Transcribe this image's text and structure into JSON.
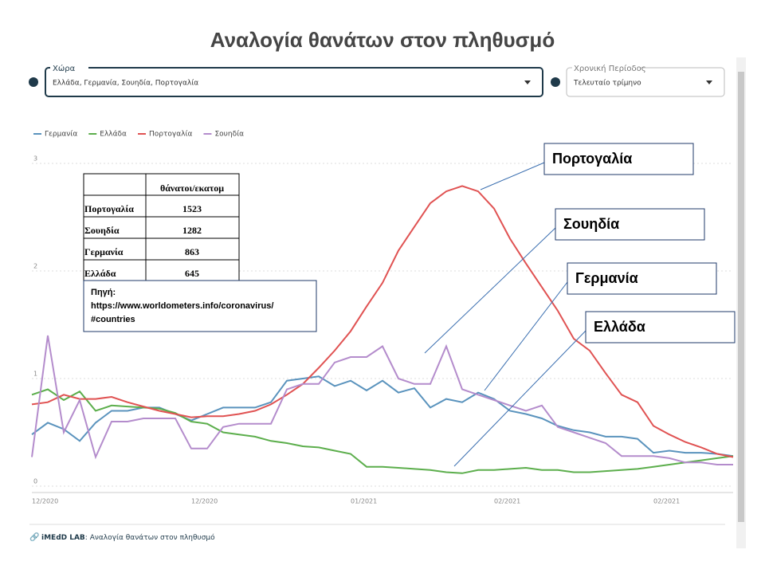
{
  "header": {
    "title": "Αναλογία θανάτων στον πληθυσμό"
  },
  "controls": [
    {
      "label": "Χώρα",
      "value": "Ελλάδα, Γερμανία, Σουηδία, Πορτογαλία"
    },
    {
      "label": "Χρονική Περίοδος",
      "value": "Τελευταίο τρίμηνο"
    }
  ],
  "chart_data": {
    "type": "line",
    "categories": [
      "12/2020",
      null,
      null,
      null,
      null,
      null,
      null,
      null,
      null,
      null,
      "12/2020",
      null,
      null,
      null,
      null,
      null,
      null,
      null,
      null,
      null,
      "01/2021",
      null,
      null,
      null,
      null,
      null,
      null,
      null,
      null,
      "02/2021",
      null,
      null,
      null,
      null,
      null,
      null,
      null,
      null,
      null,
      "02/2021",
      null,
      null,
      null,
      null,
      null
    ],
    "ylim": [
      0,
      3.2
    ],
    "yticks": [
      0,
      1,
      2,
      3
    ],
    "grid": true,
    "legend": "top-left",
    "series": [
      {
        "name": "Γερμανία",
        "color": "#5a93bd",
        "values": [
          0.48,
          0.59,
          0.53,
          0.42,
          0.59,
          0.7,
          0.7,
          0.73,
          0.73,
          0.67,
          0.61,
          0.67,
          0.73,
          0.73,
          0.73,
          0.78,
          0.98,
          1.0,
          1.02,
          0.93,
          0.98,
          0.89,
          0.98,
          0.87,
          0.91,
          0.73,
          0.81,
          0.78,
          0.87,
          0.81,
          0.7,
          0.67,
          0.63,
          0.56,
          0.52,
          0.5,
          0.46,
          0.46,
          0.44,
          0.31,
          0.33,
          0.31,
          0.31,
          0.3,
          0.28
        ]
      },
      {
        "name": "Ελλάδα",
        "color": "#5cae4c",
        "values": [
          0.85,
          0.9,
          0.8,
          0.88,
          0.7,
          0.75,
          0.74,
          0.73,
          0.72,
          0.68,
          0.6,
          0.58,
          0.5,
          0.48,
          0.46,
          0.42,
          0.4,
          0.37,
          0.36,
          0.33,
          0.3,
          0.18,
          0.18,
          0.17,
          0.16,
          0.15,
          0.13,
          0.12,
          0.15,
          0.15,
          0.16,
          0.17,
          0.15,
          0.15,
          0.13,
          0.13,
          0.14,
          0.15,
          0.16,
          0.18,
          0.2,
          0.22,
          0.24,
          0.26,
          0.28
        ]
      },
      {
        "name": "Πορτογαλία",
        "color": "#e05252",
        "values": [
          0.76,
          0.78,
          0.85,
          0.81,
          0.81,
          0.83,
          0.78,
          0.74,
          0.7,
          0.67,
          0.64,
          0.65,
          0.65,
          0.67,
          0.7,
          0.76,
          0.85,
          0.95,
          1.1,
          1.26,
          1.44,
          1.67,
          1.89,
          2.19,
          2.41,
          2.63,
          2.74,
          2.79,
          2.74,
          2.58,
          2.3,
          2.07,
          1.85,
          1.63,
          1.37,
          1.26,
          1.05,
          0.85,
          0.78,
          0.56,
          0.48,
          0.41,
          0.36,
          0.3,
          0.27
        ]
      },
      {
        "name": "Σουηδία",
        "color": "#b48ccc",
        "values": [
          0.27,
          1.4,
          0.5,
          0.8,
          0.27,
          0.6,
          0.6,
          0.63,
          0.63,
          0.63,
          0.35,
          0.35,
          0.55,
          0.58,
          0.58,
          0.58,
          0.9,
          0.95,
          0.95,
          1.15,
          1.2,
          1.2,
          1.3,
          1.0,
          0.95,
          0.95,
          1.3,
          0.9,
          0.85,
          0.8,
          0.75,
          0.7,
          0.75,
          0.55,
          0.5,
          0.45,
          0.4,
          0.28,
          0.28,
          0.28,
          0.26,
          0.22,
          0.22,
          0.2,
          0.2
        ]
      }
    ],
    "table": {
      "header": "θάνατοι/εκατομ",
      "rows": [
        [
          "Πορτογαλία",
          1523
        ],
        [
          "Σουηδία",
          1282
        ],
        [
          "Γερμανία",
          863
        ],
        [
          "Ελλάδα",
          645
        ]
      ]
    },
    "source": [
      "Πηγή:",
      "https://www.worldometers.info/coronavirus/",
      "#countries"
    ],
    "callouts": [
      "Πορτογαλία",
      "Σουηδία",
      "Γερμανία",
      "Ελλάδα"
    ]
  },
  "footer": {
    "brand": "iMEdD LAB",
    "text": ": Αναλογία θανάτων στον πληθυσμό"
  }
}
